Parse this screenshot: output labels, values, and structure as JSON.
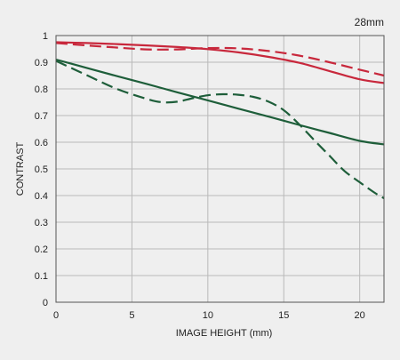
{
  "chart_data": {
    "type": "line",
    "title": "28mm",
    "xlabel": "IMAGE HEIGHT (mm)",
    "ylabel": "CONTRAST",
    "xlim": [
      0,
      21.6
    ],
    "ylim": [
      0,
      1
    ],
    "grid": true,
    "x_ticks": [
      0,
      5,
      10,
      15,
      20
    ],
    "y_ticks": [
      0,
      0.1,
      0.2,
      0.3,
      0.4,
      0.5,
      0.6,
      0.7,
      0.8,
      0.9,
      1
    ],
    "x_tick_labels": [
      "0",
      "5",
      "10",
      "15",
      "20"
    ],
    "y_tick_labels": [
      "0",
      "0.1",
      "0.2",
      "0.3",
      "0.4",
      "0.5",
      "0.6",
      "0.7",
      "0.8",
      "0.9",
      "1"
    ],
    "series": [
      {
        "color": "#c8283c",
        "style": "solid",
        "x": [
          0,
          2,
          4,
          6,
          8,
          10,
          12,
          14,
          16,
          18,
          20,
          21.6
        ],
        "y": [
          0.975,
          0.972,
          0.968,
          0.963,
          0.957,
          0.949,
          0.937,
          0.92,
          0.898,
          0.867,
          0.836,
          0.822
        ]
      },
      {
        "color": "#c8283c",
        "style": "dashed",
        "x": [
          0,
          2,
          4,
          6,
          8,
          10,
          12,
          14,
          16,
          18,
          20,
          21.6
        ],
        "y": [
          0.972,
          0.963,
          0.955,
          0.948,
          0.948,
          0.953,
          0.952,
          0.942,
          0.925,
          0.9,
          0.872,
          0.85
        ]
      },
      {
        "color": "#1e5e3a",
        "style": "solid",
        "x": [
          0,
          2,
          4,
          6,
          8,
          10,
          12,
          14,
          16,
          18,
          20,
          21.6
        ],
        "y": [
          0.91,
          0.879,
          0.848,
          0.818,
          0.787,
          0.757,
          0.726,
          0.696,
          0.665,
          0.635,
          0.605,
          0.592
        ]
      },
      {
        "color": "#1e5e3a",
        "style": "dashed",
        "x": [
          0,
          2,
          4,
          6,
          7,
          8,
          9,
          10,
          11,
          12,
          13,
          14,
          15,
          16,
          17,
          18,
          19,
          20,
          21,
          21.6
        ],
        "y": [
          0.905,
          0.852,
          0.8,
          0.762,
          0.75,
          0.752,
          0.765,
          0.776,
          0.78,
          0.778,
          0.77,
          0.752,
          0.72,
          0.668,
          0.608,
          0.55,
          0.492,
          0.45,
          0.41,
          0.39
        ]
      }
    ]
  }
}
